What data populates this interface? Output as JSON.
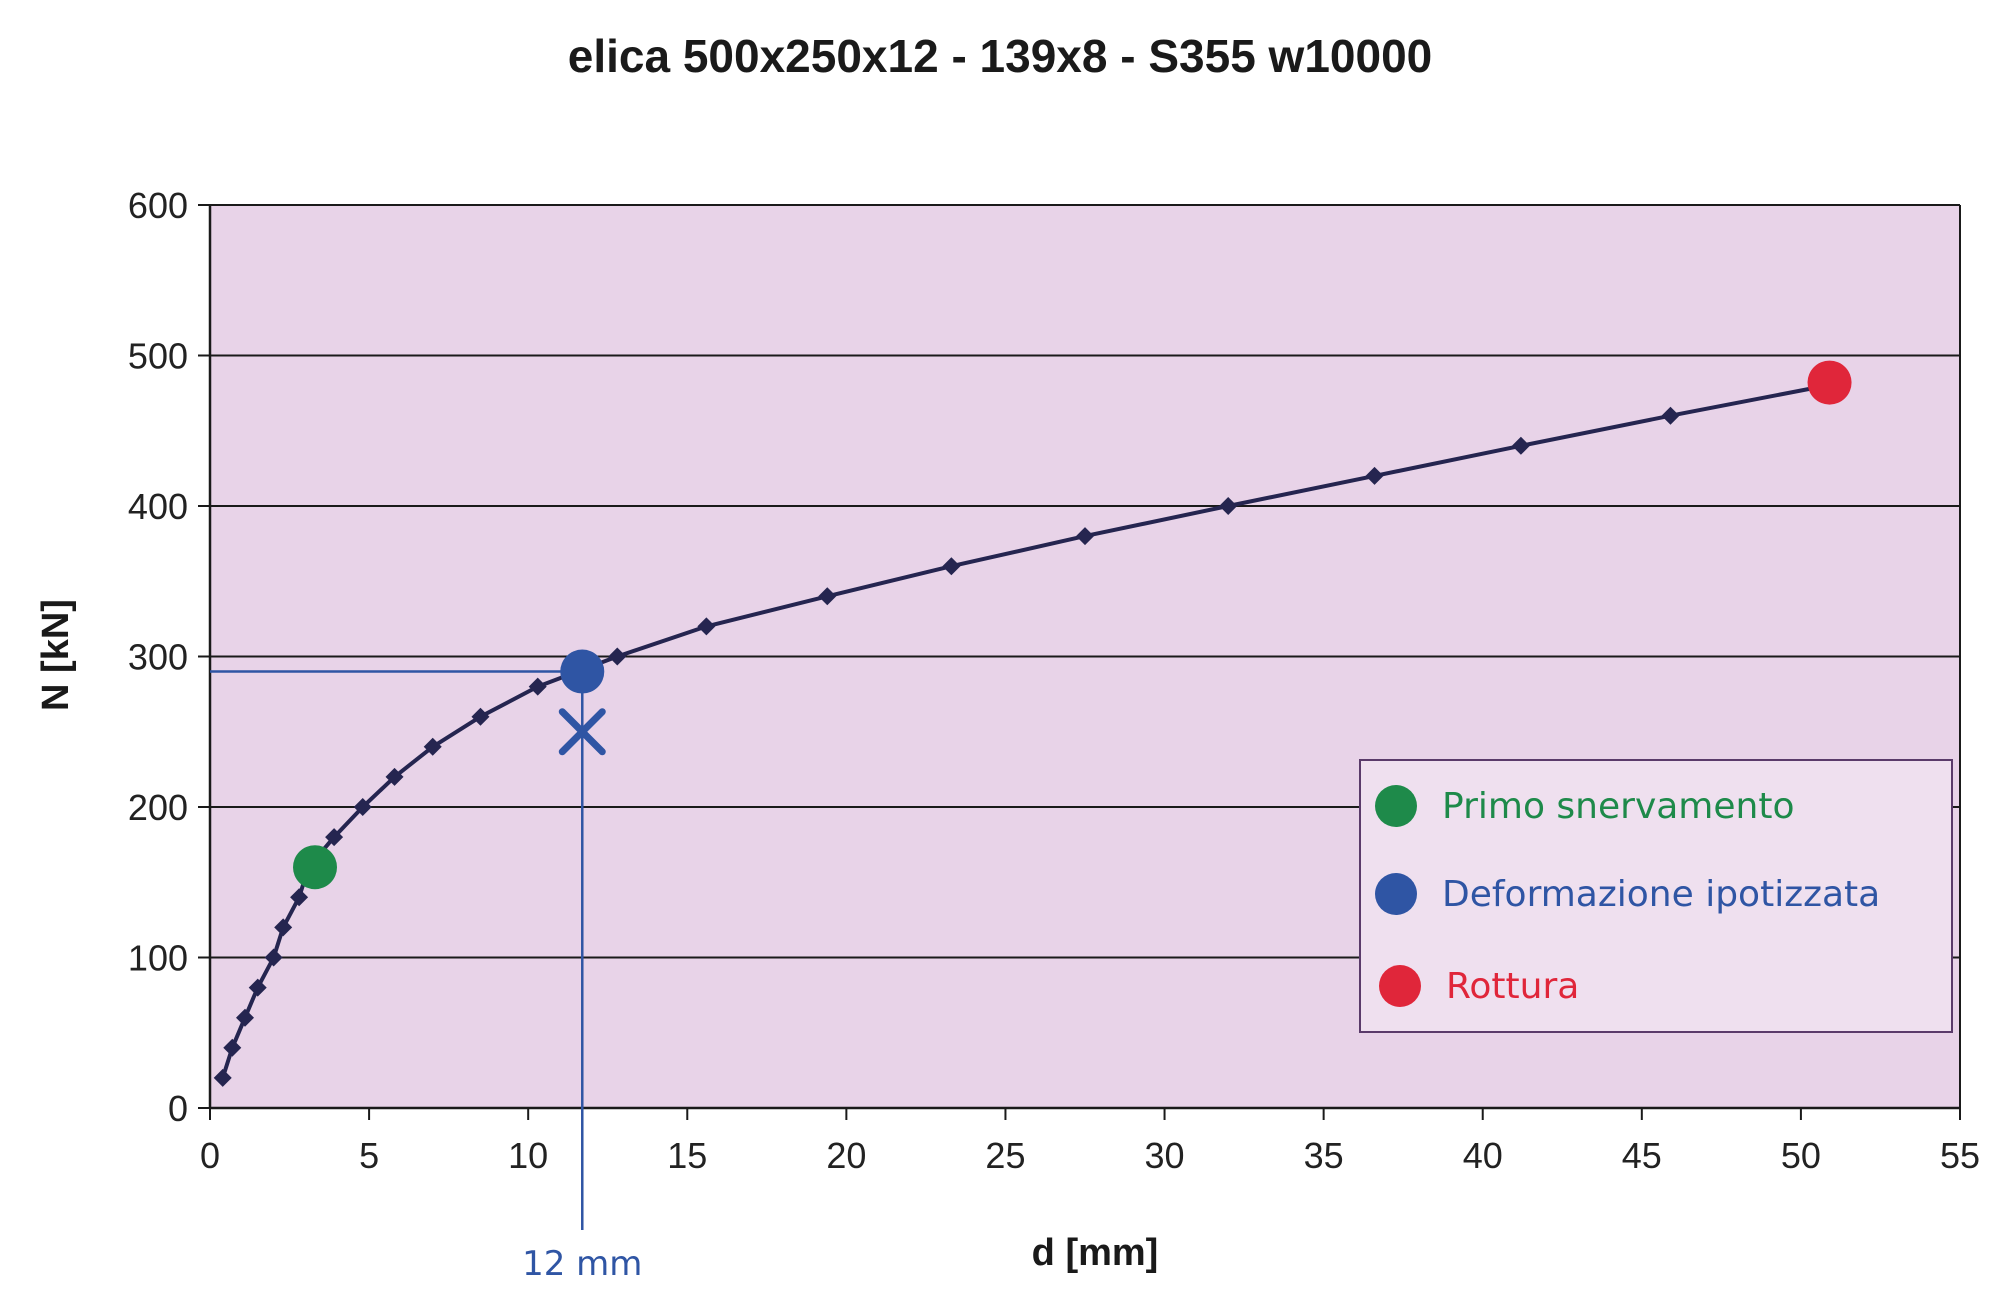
{
  "chart_data": {
    "type": "line",
    "title": "elica 500x250x12 - 139x8 - S355 w10000",
    "xlabel": "d [mm]",
    "ylabel": "N [kN]",
    "xlim": [
      0,
      55
    ],
    "ylim": [
      0,
      600
    ],
    "x_ticks": [
      "0",
      "5",
      "10",
      "15",
      "20",
      "25",
      "30",
      "35",
      "40",
      "45",
      "50",
      "55"
    ],
    "y_ticks": [
      "0",
      "100",
      "200",
      "300",
      "400",
      "500",
      "600"
    ],
    "grid": "horizontal",
    "plot_background": "#e8d3e8",
    "series": [
      {
        "color": "#252550",
        "marker": "diamond",
        "points": [
          [
            0.4,
            20
          ],
          [
            0.7,
            40
          ],
          [
            1.1,
            60
          ],
          [
            1.5,
            80
          ],
          [
            2.0,
            100
          ],
          [
            2.3,
            120
          ],
          [
            2.8,
            140
          ],
          [
            3.1,
            160
          ],
          [
            3.9,
            180
          ],
          [
            4.8,
            200
          ],
          [
            5.8,
            220
          ],
          [
            7.0,
            240
          ],
          [
            8.5,
            260
          ],
          [
            10.3,
            280
          ],
          [
            12.8,
            300
          ],
          [
            15.6,
            320
          ],
          [
            19.4,
            340
          ],
          [
            23.3,
            360
          ],
          [
            27.5,
            380
          ],
          [
            32.0,
            400
          ],
          [
            36.6,
            420
          ],
          [
            41.2,
            440
          ],
          [
            45.9,
            460
          ],
          [
            50.8,
            480
          ]
        ]
      }
    ],
    "highlight_points": [
      {
        "label": "Primo snervamento",
        "x": 3.3,
        "y": 160,
        "color": "#1e8a4a"
      },
      {
        "label": "Deformazione ipotizzata",
        "x": 11.7,
        "y": 290,
        "color": "#2f55a4"
      },
      {
        "label": "Rottura",
        "x": 50.9,
        "y": 482,
        "color": "#e0263a"
      }
    ],
    "x_mark": {
      "x": 11.7,
      "y": 250,
      "color": "#2f55a4"
    },
    "reference_lines": {
      "x": 11.7,
      "y": 290,
      "color": "#2f55a4"
    },
    "annotation": {
      "text": "12 mm",
      "color": "#2f55a4"
    },
    "legend": {
      "position": "bottom-right",
      "items": [
        {
          "label": "Primo snervamento",
          "color": "#1e8a4a"
        },
        {
          "label": "Deformazione ipotizzata",
          "color": "#2f55a4"
        },
        {
          "label": "Rottura",
          "color": "#e0263a"
        }
      ]
    }
  }
}
